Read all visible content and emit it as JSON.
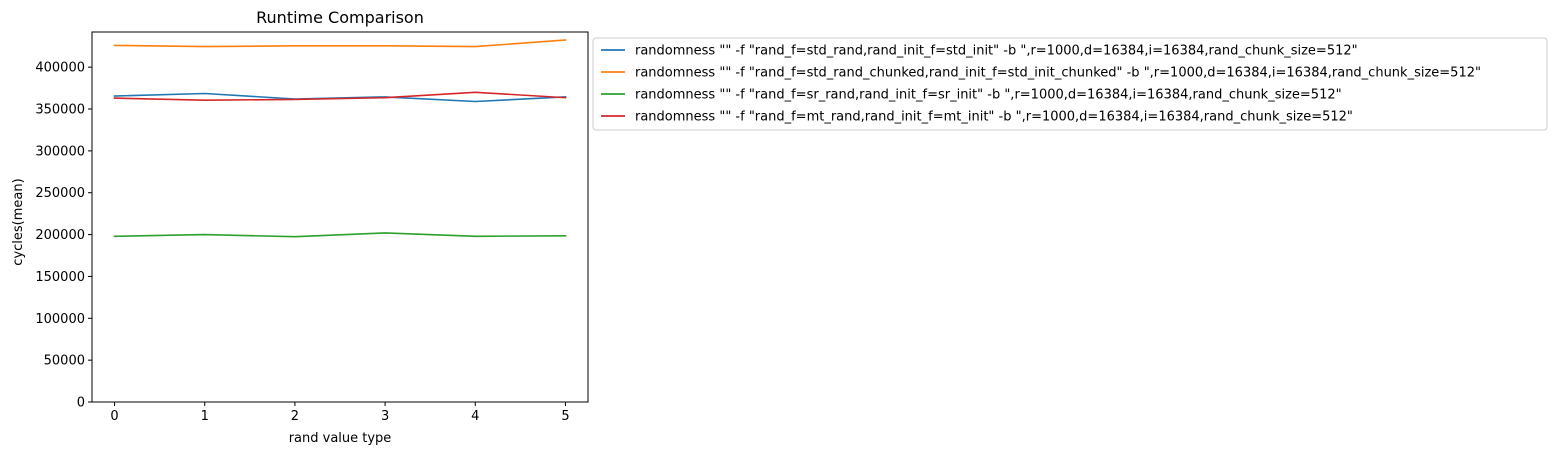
{
  "chart_data": {
    "type": "line",
    "title": "Runtime Comparison",
    "xlabel": "rand value type",
    "ylabel": "cycles(mean)",
    "x": [
      0,
      1,
      2,
      3,
      4,
      5
    ],
    "xlim": [
      -0.25,
      5.25
    ],
    "ylim": [
      0,
      442000
    ],
    "xticks": [
      0,
      1,
      2,
      3,
      4,
      5
    ],
    "yticks": [
      0,
      50000,
      100000,
      150000,
      200000,
      250000,
      300000,
      350000,
      400000
    ],
    "grid": false,
    "legend_position": "outside-upper-right",
    "series": [
      {
        "name": "randomness \"\" -f \"rand_f=std_rand,rand_init_f=std_init\" -b \",r=1000,d=16384,i=16384,rand_chunk_size=512\"",
        "color": "#1f77b4",
        "values": [
          365500,
          368500,
          362000,
          364500,
          359000,
          364500
        ]
      },
      {
        "name": "randomness \"\" -f \"rand_f=std_rand_chunked,rand_init_f=std_init_chunked\" -b \",r=1000,d=16384,i=16384,rand_chunk_size=512\"",
        "color": "#ff7f0e",
        "values": [
          426000,
          424500,
          425500,
          425500,
          424500,
          432500
        ]
      },
      {
        "name": "randomness \"\" -f \"rand_f=sr_rand,rand_init_f=sr_init\" -b \",r=1000,d=16384,i=16384,rand_chunk_size=512\"",
        "color": "#2ca02c",
        "values": [
          198000,
          200000,
          197500,
          202000,
          198000,
          198500
        ]
      },
      {
        "name": "randomness \"\" -f \"rand_f=mt_rand,rand_init_f=mt_init\" -b \",r=1000,d=16384,i=16384,rand_chunk_size=512\"",
        "color": "#d62728",
        "values": [
          363000,
          360500,
          361500,
          363500,
          370000,
          363500
        ]
      }
    ]
  }
}
